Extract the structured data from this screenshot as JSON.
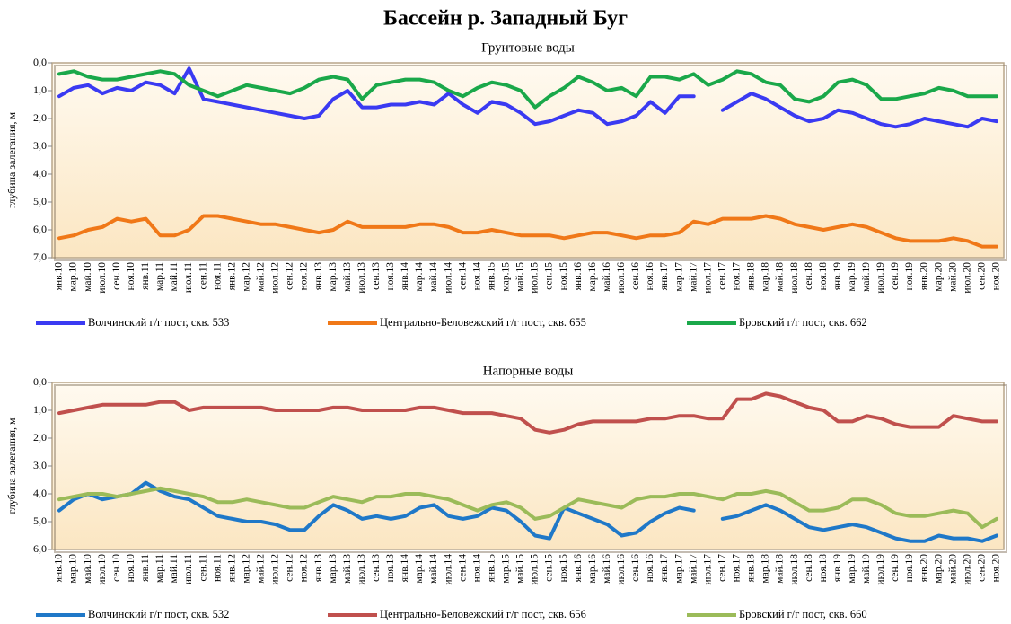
{
  "title": "Бассейн р. Западный Буг",
  "chart_data": [
    {
      "type": "line",
      "title": "Грунтовые воды",
      "y_label": "глубина залегания, м",
      "ylim": [
        0,
        7
      ],
      "y_reversed": true,
      "legend": "bottom",
      "grid": false,
      "yticks": [
        {
          "value": 0,
          "label": "0,0"
        },
        {
          "value": 1,
          "label": "1,0"
        },
        {
          "value": 2,
          "label": "2,0"
        },
        {
          "value": 3,
          "label": "3,0"
        },
        {
          "value": 4,
          "label": "4,0"
        },
        {
          "value": 5,
          "label": "5,0"
        },
        {
          "value": 6,
          "label": "6,0"
        },
        {
          "value": 7,
          "label": "7,0"
        }
      ],
      "categories": [
        "янв.10",
        "мар.10",
        "май.10",
        "июл.10",
        "сен.10",
        "ноя.10",
        "янв.11",
        "мар.11",
        "май.11",
        "июл.11",
        "сен.11",
        "ноя.11",
        "янв.12",
        "мар.12",
        "май.12",
        "июл.12",
        "сен.12",
        "ноя.12",
        "янв.13",
        "мар.13",
        "май.13",
        "июл.13",
        "сен.13",
        "ноя.13",
        "янв.14",
        "мар.14",
        "май.14",
        "июл.14",
        "сен.14",
        "ноя.14",
        "янв.15",
        "мар.15",
        "май.15",
        "июл.15",
        "сен.15",
        "ноя.15",
        "янв.16",
        "мар.16",
        "май.16",
        "июл.16",
        "сен.16",
        "ноя.16",
        "янв.17",
        "мар.17",
        "май.17",
        "июл.17",
        "сен.17",
        "ноя.17",
        "янв.18",
        "мар.18",
        "май.18",
        "июл.18",
        "сен.18",
        "ноя.18",
        "янв.19",
        "мар.19",
        "май.19",
        "июл.19",
        "сен.19",
        "ноя.19",
        "янв.20",
        "мар.20",
        "май.20",
        "июл.20",
        "сен.20",
        "ноя.20"
      ],
      "series": [
        {
          "name": "Волчинский г/г пост, скв. 533",
          "color": "#3a3af2",
          "values": [
            1.2,
            0.9,
            0.8,
            1.1,
            0.9,
            1.0,
            0.7,
            0.8,
            1.1,
            0.2,
            1.3,
            1.4,
            1.5,
            1.6,
            1.7,
            1.8,
            1.9,
            2.0,
            1.9,
            1.3,
            1.0,
            1.6,
            1.6,
            1.5,
            1.5,
            1.4,
            1.5,
            1.1,
            1.5,
            1.8,
            1.4,
            1.5,
            1.8,
            2.2,
            2.1,
            1.9,
            1.7,
            1.8,
            2.2,
            2.1,
            1.9,
            1.4,
            1.8,
            1.2,
            1.2,
            null,
            1.7,
            1.4,
            1.1,
            1.3,
            1.6,
            1.9,
            2.1,
            2.0,
            1.7,
            1.8,
            2.0,
            2.2,
            2.3,
            2.2,
            2.0,
            2.1,
            2.2,
            2.3,
            2.0,
            2.1
          ]
        },
        {
          "name": "Центрально-Беловежский г/г пост, скв. 655",
          "color": "#f07818",
          "values": [
            6.3,
            6.2,
            6.0,
            5.9,
            5.6,
            5.7,
            5.6,
            6.2,
            6.2,
            6.0,
            5.5,
            5.5,
            5.6,
            5.7,
            5.8,
            5.8,
            5.9,
            6.0,
            6.1,
            6.0,
            5.7,
            5.9,
            5.9,
            5.9,
            5.9,
            5.8,
            5.8,
            5.9,
            6.1,
            6.1,
            6.0,
            6.1,
            6.2,
            6.2,
            6.2,
            6.3,
            6.2,
            6.1,
            6.1,
            6.2,
            6.3,
            6.2,
            6.2,
            6.1,
            5.7,
            5.8,
            5.6,
            5.6,
            5.6,
            5.5,
            5.6,
            5.8,
            5.9,
            6.0,
            5.9,
            5.8,
            5.9,
            6.1,
            6.3,
            6.4,
            6.4,
            6.4,
            6.3,
            6.4,
            6.6,
            6.6
          ]
        },
        {
          "name": "Бровский г/г пост, скв. 662",
          "color": "#1aa84a",
          "values": [
            0.4,
            0.3,
            0.5,
            0.6,
            0.6,
            0.5,
            0.4,
            0.3,
            0.4,
            0.8,
            1.0,
            1.2,
            1.0,
            0.8,
            0.9,
            1.0,
            1.1,
            0.9,
            0.6,
            0.5,
            0.6,
            1.3,
            0.8,
            0.7,
            0.6,
            0.6,
            0.7,
            1.0,
            1.2,
            0.9,
            0.7,
            0.8,
            1.0,
            1.6,
            1.2,
            0.9,
            0.5,
            0.7,
            1.0,
            0.9,
            1.2,
            0.5,
            0.5,
            0.6,
            0.4,
            0.8,
            0.6,
            0.3,
            0.4,
            0.7,
            0.8,
            1.3,
            1.4,
            1.2,
            0.7,
            0.6,
            0.8,
            1.3,
            1.3,
            1.2,
            1.1,
            0.9,
            1.0,
            1.2,
            1.2,
            1.2
          ]
        }
      ]
    },
    {
      "type": "line",
      "title": "Напорные воды",
      "y_label": "глубина залегания, м",
      "ylim": [
        0,
        6
      ],
      "y_reversed": true,
      "legend": "bottom",
      "grid": false,
      "yticks": [
        {
          "value": 0,
          "label": "0,0"
        },
        {
          "value": 1,
          "label": "1,0"
        },
        {
          "value": 2,
          "label": "2,0"
        },
        {
          "value": 3,
          "label": "3,0"
        },
        {
          "value": 4,
          "label": "4,0"
        },
        {
          "value": 5,
          "label": "5,0"
        },
        {
          "value": 6,
          "label": "6,0"
        }
      ],
      "categories": [
        "янв.10",
        "мар.10",
        "май.10",
        "июл.10",
        "сен.10",
        "ноя.10",
        "янв.11",
        "мар.11",
        "май.11",
        "июл.11",
        "сен.11",
        "ноя.11",
        "янв.12",
        "мар.12",
        "май.12",
        "июл.12",
        "сен.12",
        "ноя.12",
        "янв.13",
        "мар.13",
        "май.13",
        "июл.13",
        "сен.13",
        "ноя.13",
        "янв.14",
        "мар.14",
        "май.14",
        "июл.14",
        "сен.14",
        "ноя.14",
        "янв.15",
        "мар.15",
        "май.15",
        "июл.15",
        "сен.15",
        "ноя.15",
        "янв.16",
        "мар.16",
        "май.16",
        "июл.16",
        "сен.16",
        "ноя.16",
        "янв.17",
        "мар.17",
        "май.17",
        "июл.17",
        "сен.17",
        "ноя.17",
        "янв.18",
        "мар.18",
        "май.18",
        "июл.18",
        "сен.18",
        "ноя.18",
        "янв.19",
        "мар.19",
        "май.19",
        "июл.19",
        "сен.19",
        "ноя.19",
        "янв.20",
        "мар.20",
        "май.20",
        "июл.20",
        "сен.20",
        "ноя.20"
      ],
      "series": [
        {
          "name": "Волчинский г/г пост, скв. 532",
          "color": "#1f78c8",
          "values": [
            4.6,
            4.2,
            4.0,
            4.2,
            4.1,
            4.0,
            3.6,
            3.9,
            4.1,
            4.2,
            4.5,
            4.8,
            4.9,
            5.0,
            5.0,
            5.1,
            5.3,
            5.3,
            4.8,
            4.4,
            4.6,
            4.9,
            4.8,
            4.9,
            4.8,
            4.5,
            4.4,
            4.8,
            4.9,
            4.8,
            4.5,
            4.6,
            5.0,
            5.5,
            5.6,
            4.5,
            4.7,
            4.9,
            5.1,
            5.5,
            5.4,
            5.0,
            4.7,
            4.5,
            4.6,
            null,
            4.9,
            4.8,
            4.6,
            4.4,
            4.6,
            4.9,
            5.2,
            5.3,
            5.2,
            5.1,
            5.2,
            5.4,
            5.6,
            5.7,
            5.7,
            5.5,
            5.6,
            5.6,
            5.7,
            5.5
          ]
        },
        {
          "name": "Центрально-Беловежский г/г пост, скв. 656",
          "color": "#c0504d",
          "values": [
            1.1,
            1.0,
            0.9,
            0.8,
            0.8,
            0.8,
            0.8,
            0.7,
            0.7,
            1.0,
            0.9,
            0.9,
            0.9,
            0.9,
            0.9,
            1.0,
            1.0,
            1.0,
            1.0,
            0.9,
            0.9,
            1.0,
            1.0,
            1.0,
            1.0,
            0.9,
            0.9,
            1.0,
            1.1,
            1.1,
            1.1,
            1.2,
            1.3,
            1.7,
            1.8,
            1.7,
            1.5,
            1.4,
            1.4,
            1.4,
            1.4,
            1.3,
            1.3,
            1.2,
            1.2,
            1.3,
            1.3,
            0.6,
            0.6,
            0.4,
            0.5,
            0.7,
            0.9,
            1.0,
            1.4,
            1.4,
            1.2,
            1.3,
            1.5,
            1.6,
            1.6,
            1.6,
            1.2,
            1.3,
            1.4,
            1.4
          ]
        },
        {
          "name": "Бровский г/г пост, скв. 660",
          "color": "#9bbb59",
          "values": [
            4.2,
            4.1,
            4.0,
            4.0,
            4.1,
            4.0,
            3.9,
            3.8,
            3.9,
            4.0,
            4.1,
            4.3,
            4.3,
            4.2,
            4.3,
            4.4,
            4.5,
            4.5,
            4.3,
            4.1,
            4.2,
            4.3,
            4.1,
            4.1,
            4.0,
            4.0,
            4.1,
            4.2,
            4.4,
            4.6,
            4.4,
            4.3,
            4.5,
            4.9,
            4.8,
            4.5,
            4.2,
            4.3,
            4.4,
            4.5,
            4.2,
            4.1,
            4.1,
            4.0,
            4.0,
            4.1,
            4.2,
            4.0,
            4.0,
            3.9,
            4.0,
            4.3,
            4.6,
            4.6,
            4.5,
            4.2,
            4.2,
            4.4,
            4.7,
            4.8,
            4.8,
            4.7,
            4.6,
            4.7,
            5.2,
            4.9
          ]
        }
      ]
    }
  ]
}
